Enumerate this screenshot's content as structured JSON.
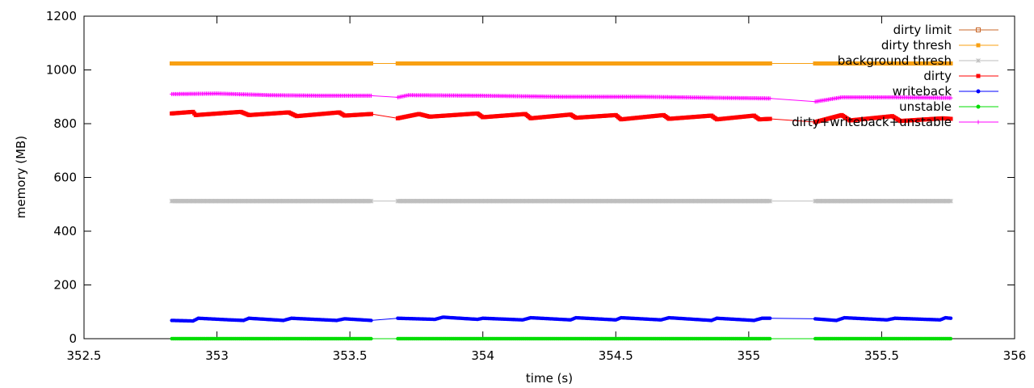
{
  "chart_data": {
    "type": "line",
    "title": "",
    "xlabel": "time (s)",
    "ylabel": "memory (MB)",
    "xlim": [
      352.5,
      356
    ],
    "ylim": [
      0,
      1200
    ],
    "xticks": [
      "352.5",
      "353",
      "353.5",
      "354",
      "354.5",
      "355",
      "355.5",
      "356"
    ],
    "yticks": [
      "0",
      "200",
      "400",
      "600",
      "800",
      "1000",
      "1200"
    ],
    "grid": false,
    "legend_position": "top-right",
    "segments": [
      [
        352.83,
        353.58
      ],
      [
        353.68,
        355.08
      ],
      [
        355.25,
        355.76
      ]
    ],
    "series": [
      {
        "name": "dirty limit",
        "color": "#c8672a",
        "marker": "square-open",
        "values": [
          [
            352.83,
            1024
          ],
          [
            353.58,
            1024
          ],
          [
            353.68,
            1024
          ],
          [
            355.08,
            1024
          ],
          [
            355.25,
            1024
          ],
          [
            355.76,
            1024
          ]
        ]
      },
      {
        "name": "dirty thresh",
        "color": "#f8a012",
        "marker": "square-filled",
        "values": [
          [
            352.83,
            1024
          ],
          [
            353.58,
            1024
          ],
          [
            353.68,
            1024
          ],
          [
            355.08,
            1024
          ],
          [
            355.25,
            1024
          ],
          [
            355.76,
            1024
          ]
        ]
      },
      {
        "name": "background thresh",
        "color": "#bebebe",
        "marker": "star",
        "values": [
          [
            352.83,
            512
          ],
          [
            353.58,
            512
          ],
          [
            353.68,
            512
          ],
          [
            355.08,
            512
          ],
          [
            355.25,
            512
          ],
          [
            355.76,
            512
          ]
        ]
      },
      {
        "name": "dirty",
        "color": "#ff0000",
        "marker": "square-filled",
        "values": [
          [
            352.83,
            838
          ],
          [
            352.91,
            844
          ],
          [
            352.92,
            832
          ],
          [
            353.09,
            844
          ],
          [
            353.12,
            832
          ],
          [
            353.27,
            842
          ],
          [
            353.3,
            828
          ],
          [
            353.46,
            842
          ],
          [
            353.48,
            830
          ],
          [
            353.58,
            836
          ],
          [
            353.68,
            820
          ],
          [
            353.76,
            836
          ],
          [
            353.8,
            826
          ],
          [
            353.98,
            838
          ],
          [
            354.0,
            824
          ],
          [
            354.16,
            836
          ],
          [
            354.18,
            820
          ],
          [
            354.33,
            834
          ],
          [
            354.35,
            822
          ],
          [
            354.5,
            832
          ],
          [
            354.52,
            816
          ],
          [
            354.68,
            832
          ],
          [
            354.7,
            818
          ],
          [
            354.86,
            830
          ],
          [
            354.88,
            816
          ],
          [
            355.02,
            830
          ],
          [
            355.04,
            816
          ],
          [
            355.08,
            818
          ],
          [
            355.25,
            806
          ],
          [
            355.35,
            832
          ],
          [
            355.38,
            812
          ],
          [
            355.54,
            828
          ],
          [
            355.57,
            810
          ],
          [
            355.73,
            820
          ],
          [
            355.76,
            818
          ]
        ]
      },
      {
        "name": "writeback",
        "color": "#0000ff",
        "marker": "circle-filled",
        "values": [
          [
            352.83,
            68
          ],
          [
            352.91,
            66
          ],
          [
            352.93,
            76
          ],
          [
            353.05,
            70
          ],
          [
            353.1,
            68
          ],
          [
            353.12,
            76
          ],
          [
            353.25,
            68
          ],
          [
            353.28,
            76
          ],
          [
            353.45,
            68
          ],
          [
            353.48,
            74
          ],
          [
            353.58,
            68
          ],
          [
            353.68,
            76
          ],
          [
            353.82,
            72
          ],
          [
            353.85,
            80
          ],
          [
            353.98,
            72
          ],
          [
            354.0,
            76
          ],
          [
            354.15,
            70
          ],
          [
            354.18,
            78
          ],
          [
            354.33,
            70
          ],
          [
            354.35,
            78
          ],
          [
            354.5,
            70
          ],
          [
            354.52,
            78
          ],
          [
            354.67,
            70
          ],
          [
            354.7,
            78
          ],
          [
            354.86,
            68
          ],
          [
            354.88,
            76
          ],
          [
            355.02,
            68
          ],
          [
            355.05,
            76
          ],
          [
            355.08,
            76
          ],
          [
            355.25,
            74
          ],
          [
            355.33,
            68
          ],
          [
            355.36,
            78
          ],
          [
            355.52,
            70
          ],
          [
            355.55,
            76
          ],
          [
            355.72,
            70
          ],
          [
            355.74,
            78
          ],
          [
            355.76,
            76
          ]
        ]
      },
      {
        "name": "unstable",
        "color": "#00dd00",
        "marker": "circle-filled",
        "values": [
          [
            352.83,
            0
          ],
          [
            353.58,
            0
          ],
          [
            353.68,
            0
          ],
          [
            355.08,
            0
          ],
          [
            355.25,
            0
          ],
          [
            355.76,
            0
          ]
        ]
      },
      {
        "name": "dirty+writeback+unstable",
        "color": "#ff00ff",
        "marker": "plus",
        "values": [
          [
            352.83,
            910
          ],
          [
            353.0,
            912
          ],
          [
            353.2,
            906
          ],
          [
            353.4,
            904
          ],
          [
            353.58,
            904
          ],
          [
            353.68,
            898
          ],
          [
            353.72,
            906
          ],
          [
            354.0,
            904
          ],
          [
            354.3,
            900
          ],
          [
            354.6,
            900
          ],
          [
            354.9,
            896
          ],
          [
            355.08,
            894
          ],
          [
            355.25,
            882
          ],
          [
            355.35,
            898
          ],
          [
            355.55,
            898
          ],
          [
            355.76,
            896
          ]
        ]
      }
    ]
  }
}
